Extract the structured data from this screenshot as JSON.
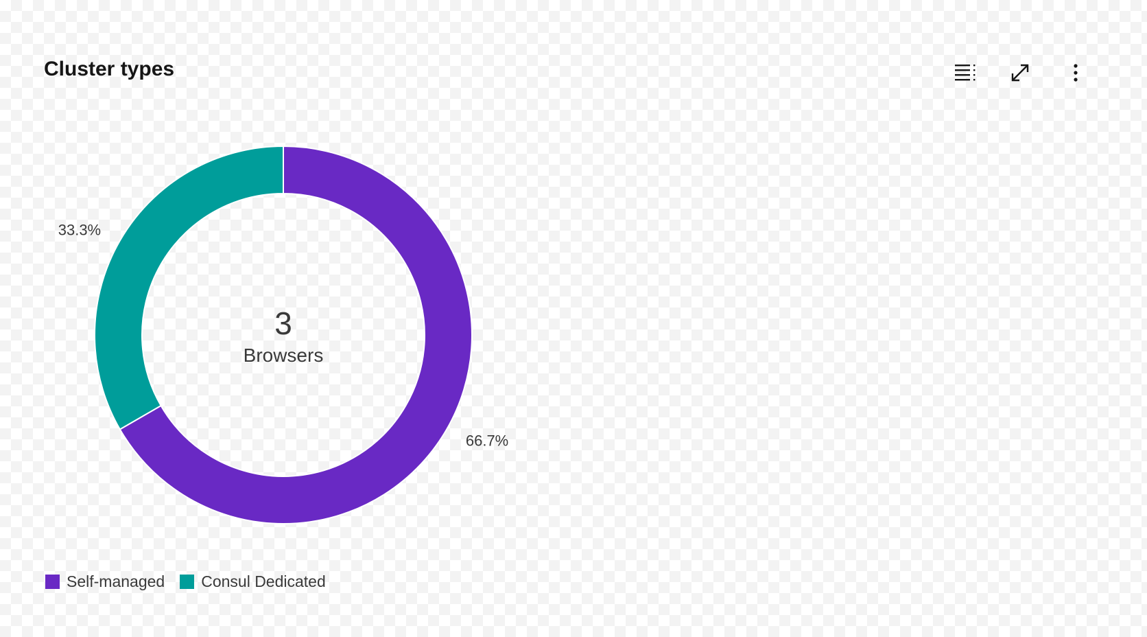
{
  "header": {
    "title": "Cluster types",
    "icons": [
      "table-view-icon",
      "maximize-icon",
      "overflow-menu-icon"
    ]
  },
  "chart_data": {
    "type": "donut",
    "title": "Cluster types",
    "center": {
      "value": "3",
      "label": "Browsers"
    },
    "series": [
      {
        "name": "Self-managed",
        "value": 2,
        "percent_label": "66.7%",
        "color": "#6929c4"
      },
      {
        "name": "Consul Dedicated",
        "value": 1,
        "percent_label": "33.3%",
        "color": "#009d9a"
      }
    ],
    "legend_position": "bottom-left"
  }
}
